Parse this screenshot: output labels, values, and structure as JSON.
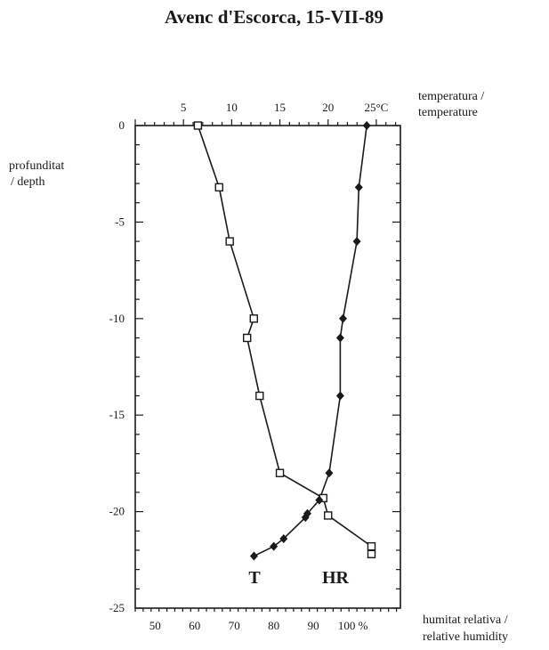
{
  "chart_data": {
    "type": "line",
    "title": "Avenc d'Escorca, 15-VII-89",
    "ylabel": [
      "profunditat",
      "/ depth"
    ],
    "x_top_label": [
      "temperatura /",
      "temperature"
    ],
    "x_bottom_label": [
      "humitat relativa /",
      "relative humidity"
    ],
    "ylim": [
      -25,
      0
    ],
    "x_top_lim": [
      0,
      27.5
    ],
    "x_bottom_lim": [
      45,
      112
    ],
    "y_ticks": [
      0,
      -5,
      -10,
      -15,
      -20,
      -25
    ],
    "x_top_ticks": [
      {
        "value": 5,
        "label": "5"
      },
      {
        "value": 10,
        "label": "10"
      },
      {
        "value": 15,
        "label": "15"
      },
      {
        "value": 20,
        "label": "20"
      },
      {
        "value": 25,
        "label": "25°C"
      }
    ],
    "x_bottom_ticks": [
      {
        "value": 50,
        "label": "50"
      },
      {
        "value": 60,
        "label": "60"
      },
      {
        "value": 70,
        "label": "70"
      },
      {
        "value": 80,
        "label": "80"
      },
      {
        "value": 90,
        "label": "90"
      },
      {
        "value": 100,
        "label": "100 %"
      }
    ],
    "series": [
      {
        "name": "T",
        "axis": "top",
        "marker": "open-square",
        "points": [
          {
            "x": 6.5,
            "y": 0
          },
          {
            "x": 8.7,
            "y": -3.2
          },
          {
            "x": 9.8,
            "y": -6
          },
          {
            "x": 12.3,
            "y": -10
          },
          {
            "x": 11.6,
            "y": -11
          },
          {
            "x": 12.9,
            "y": -14
          },
          {
            "x": 15.0,
            "y": -18
          },
          {
            "x": 19.5,
            "y": -19.3
          },
          {
            "x": 20.0,
            "y": -20.2
          },
          {
            "x": 24.5,
            "y": -21.8
          },
          {
            "x": 24.5,
            "y": -22.2
          }
        ]
      },
      {
        "name": "HR",
        "axis": "bottom",
        "marker": "filled-diamond",
        "points": [
          {
            "x": 103.5,
            "y": 0
          },
          {
            "x": 101.5,
            "y": -3.2
          },
          {
            "x": 101,
            "y": -6
          },
          {
            "x": 97.5,
            "y": -10
          },
          {
            "x": 96.8,
            "y": -11
          },
          {
            "x": 96.8,
            "y": -14
          },
          {
            "x": 94,
            "y": -18
          },
          {
            "x": 91.5,
            "y": -19.4
          },
          {
            "x": 88.5,
            "y": -20.1
          },
          {
            "x": 88,
            "y": -20.3
          },
          {
            "x": 82.5,
            "y": -21.4
          },
          {
            "x": 80,
            "y": -21.8
          },
          {
            "x": 75,
            "y": -22.3
          }
        ]
      }
    ],
    "legend_labels": {
      "t": "T",
      "hr": "HR"
    },
    "grid": false
  }
}
